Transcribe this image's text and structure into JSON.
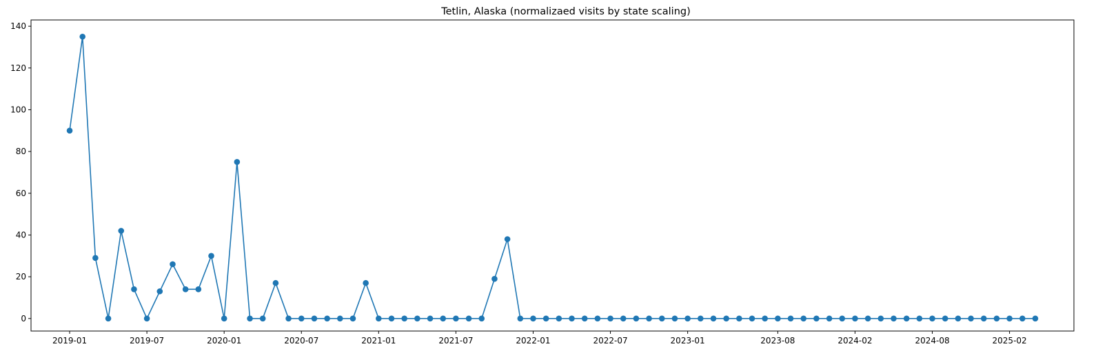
{
  "chart_data": {
    "type": "line",
    "title": "Tetlin, Alaska (normalizaed visits by state scaling)",
    "xlabel": "",
    "ylabel": "",
    "grid": false,
    "legend": "none",
    "marker": "circle",
    "color": "#1f77b4",
    "x_start": "2019-01",
    "x": [
      "2019-01",
      "2019-02",
      "2019-03",
      "2019-04",
      "2019-05",
      "2019-06",
      "2019-07",
      "2019-08",
      "2019-09",
      "2019-10",
      "2019-11",
      "2019-12",
      "2020-01",
      "2020-02",
      "2020-03",
      "2020-04",
      "2020-05",
      "2020-06",
      "2020-07",
      "2020-08",
      "2020-09",
      "2020-10",
      "2020-11",
      "2020-12",
      "2021-01",
      "2021-02",
      "2021-03",
      "2021-04",
      "2021-05",
      "2021-06",
      "2021-07",
      "2021-08",
      "2021-09",
      "2021-10",
      "2021-11",
      "2021-12",
      "2022-01",
      "2022-02",
      "2022-03",
      "2022-04",
      "2022-05",
      "2022-06",
      "2022-07",
      "2022-08",
      "2022-09",
      "2022-10",
      "2022-11",
      "2022-12",
      "2023-01",
      "2023-02",
      "2023-03",
      "2023-04",
      "2023-05",
      "2023-06",
      "2023-07",
      "2023-08",
      "2023-09",
      "2023-10",
      "2023-11",
      "2023-12",
      "2024-01",
      "2024-02",
      "2024-03",
      "2024-04",
      "2024-05",
      "2024-06",
      "2024-07",
      "2024-08",
      "2024-09",
      "2024-10",
      "2024-11",
      "2024-12",
      "2025-01",
      "2025-02",
      "2025-03",
      "2025-04"
    ],
    "series": [
      {
        "values": [
          90,
          135,
          29,
          0,
          42,
          14,
          0,
          13,
          26,
          14,
          14,
          30,
          0,
          75,
          0,
          0,
          17,
          0,
          0,
          0,
          0,
          0,
          0,
          17,
          0,
          0,
          0,
          0,
          0,
          0,
          0,
          0,
          0,
          19,
          38,
          0,
          0,
          0,
          0,
          0,
          0,
          0,
          0,
          0,
          0,
          0,
          0,
          0,
          0,
          0,
          0,
          0,
          0,
          0,
          0,
          0,
          0,
          0,
          0,
          0,
          0,
          0,
          0,
          0,
          0,
          0,
          0,
          0,
          0,
          0,
          0,
          0,
          0,
          0,
          0,
          0
        ]
      }
    ],
    "xlim": [
      "2018-10",
      "2025-07"
    ],
    "ylim": [
      -6,
      143
    ],
    "x_ticks": [
      "2019-01",
      "2019-07",
      "2020-01",
      "2020-07",
      "2021-01",
      "2021-07",
      "2022-01",
      "2022-07",
      "2023-01",
      "2023-08",
      "2024-02",
      "2024-08",
      "2025-02"
    ],
    "y_ticks": [
      0,
      20,
      40,
      60,
      80,
      100,
      120,
      140
    ]
  }
}
